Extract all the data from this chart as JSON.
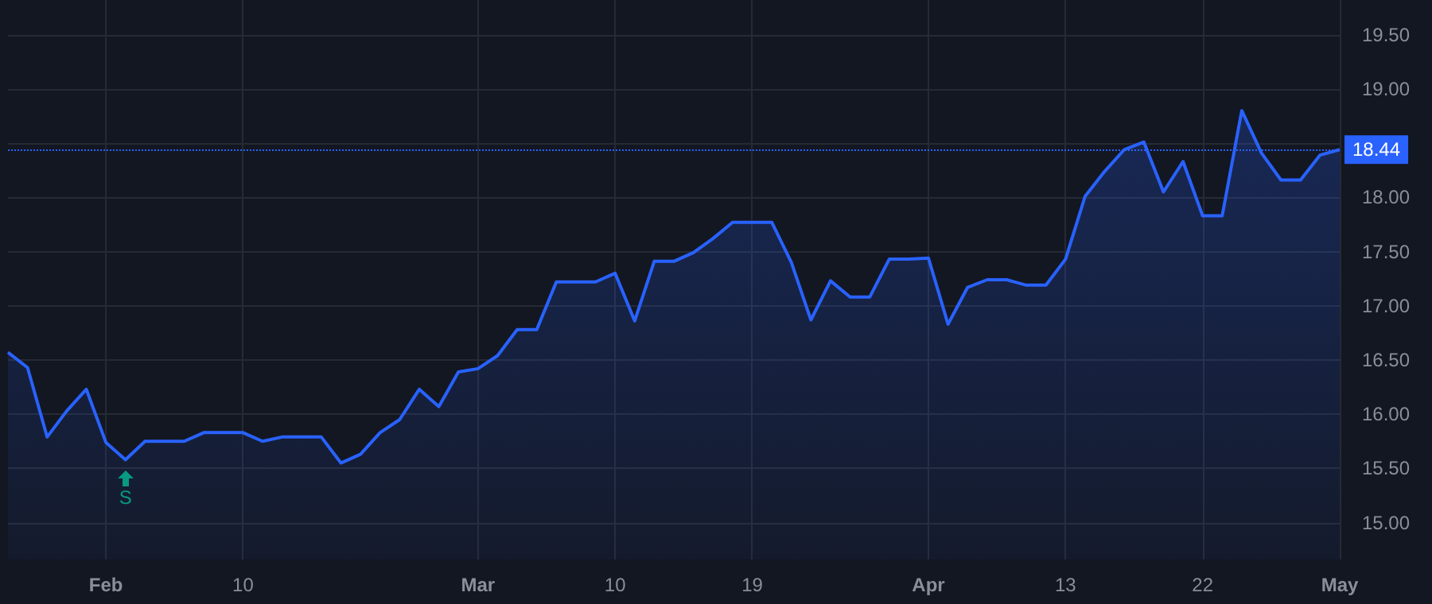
{
  "chart_data": {
    "type": "area",
    "categories": [
      null,
      null,
      null,
      null,
      null,
      "Feb",
      null,
      null,
      null,
      null,
      null,
      null,
      "10",
      null,
      null,
      null,
      null,
      null,
      null,
      null,
      null,
      null,
      null,
      null,
      "Mar",
      null,
      null,
      null,
      null,
      null,
      null,
      "10",
      null,
      null,
      null,
      null,
      null,
      null,
      "19",
      null,
      null,
      null,
      null,
      null,
      null,
      null,
      null,
      "Apr",
      null,
      null,
      null,
      null,
      null,
      null,
      "13",
      null,
      null,
      null,
      null,
      null,
      null,
      "22",
      null,
      null,
      null,
      null,
      null,
      null,
      "May"
    ],
    "series": [
      {
        "color": "#2962ff",
        "values": [
          16.57,
          16.43,
          15.79,
          16.03,
          16.23,
          15.74,
          15.58,
          15.75,
          15.75,
          15.75,
          15.83,
          15.83,
          15.83,
          15.75,
          15.79,
          15.79,
          15.79,
          15.55,
          15.63,
          15.83,
          15.95,
          16.23,
          16.07,
          16.39,
          16.42,
          16.54,
          16.78,
          16.78,
          17.22,
          17.22,
          17.22,
          17.3,
          16.86,
          17.41,
          17.41,
          17.49,
          17.62,
          17.77,
          17.77,
          17.77,
          17.4,
          16.87,
          17.23,
          17.08,
          17.08,
          17.43,
          17.43,
          17.44,
          16.83,
          17.17,
          17.24,
          17.24,
          17.19,
          17.19,
          17.43,
          18.01,
          18.24,
          18.44,
          18.51,
          18.05,
          18.33,
          17.83,
          17.83,
          18.8,
          18.41,
          18.16,
          18.16,
          18.39,
          18.44
        ]
      }
    ],
    "ylim": [
      14.66,
      19.82
    ],
    "yticks": [
      {
        "value": 15,
        "label": "15.00"
      },
      {
        "value": 15.5,
        "label": "15.50"
      },
      {
        "value": 16,
        "label": "16.00"
      },
      {
        "value": 16.5,
        "label": "16.50"
      },
      {
        "value": 17,
        "label": "17.00"
      },
      {
        "value": 17.5,
        "label": "17.50"
      },
      {
        "value": 18,
        "label": "18.00"
      },
      {
        "value": 18.5,
        "label": null
      },
      {
        "value": 19,
        "label": "19.00"
      },
      {
        "value": 19.5,
        "label": "19.50"
      }
    ],
    "ref_lines": [
      {
        "axis": "y",
        "value": 18.44,
        "label": "18.44",
        "color": "#2962ff",
        "line_style": "dotted"
      }
    ],
    "annotations": [
      {
        "text": "S",
        "y": 15.58
      }
    ],
    "grid": true,
    "marker": "none",
    "line_style": "solid"
  }
}
